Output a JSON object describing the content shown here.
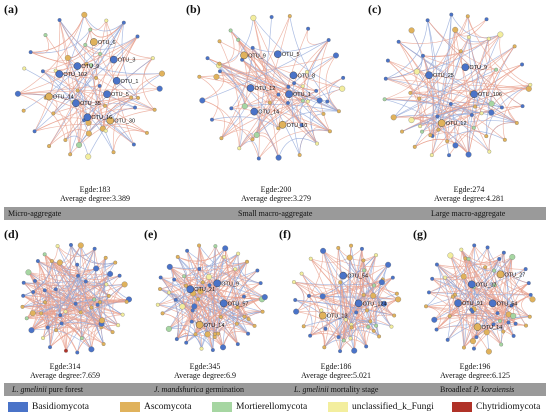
{
  "colors": {
    "basidio": "#4a73c8",
    "asco": "#e0b25c",
    "mort": "#a6d6a2",
    "uncl": "#f3ee9e",
    "chytrid": "#b03228",
    "edge_pos": "#e8a08e",
    "edge_neg": "#8fa6d8",
    "bar": "#9a9a9a"
  },
  "panels": [
    {
      "label": "(a)",
      "stats_line1": "Egde:183",
      "stats_line2": "Average degree:3.389",
      "nodes": [
        "OTU_5",
        "OTU_30",
        "OTU_16",
        "OTU_35",
        "OTU_14",
        "OTU_102",
        "OTU_9",
        "OTU_6",
        "OTU_3",
        "OTU_1"
      ]
    },
    {
      "label": "(b)",
      "stats_line1": "Egde:200",
      "stats_line2": "Average degree:3.279",
      "nodes": [
        "OTU_1",
        "OTU_10",
        "OTU_14",
        "OTU_12",
        "OTU_9",
        "OTU_5",
        "OTU_8"
      ]
    },
    {
      "label": "(c)",
      "stats_line1": "Egde:274",
      "stats_line2": "Average degree:4.281",
      "nodes": [
        "OTU_106",
        "OTU_12",
        "OTU_25",
        "OTU_9"
      ]
    },
    {
      "label": "(d)",
      "stats_line1": "Egde:314",
      "stats_line2": "Average degree:7.659",
      "nodes": []
    },
    {
      "label": "(e)",
      "stats_line1": "Egde:345",
      "stats_line2": "Average degree:6.9",
      "nodes": [
        "OTU_57",
        "OTU_14",
        "OTU_21",
        "OTU_9"
      ]
    },
    {
      "label": "(f)",
      "stats_line1": "Egde:186",
      "stats_line2": "Average degree:5.021",
      "nodes": [
        "OTU_124",
        "OTU_13",
        "OTU_54"
      ]
    },
    {
      "label": "(g)",
      "stats_line1": "Egde:196",
      "stats_line2": "Average degree:6.125",
      "nodes": [
        "OTU_54",
        "OTU_14",
        "OTU_91",
        "OTU_37",
        "OTU_27"
      ]
    }
  ],
  "bars": {
    "top": [
      "Micro-aggregate",
      "Small macro-aggregate",
      "Large macro-aggregate"
    ],
    "bottom": [
      {
        "italic": "L. gmelinii",
        "rest": " pure forest"
      },
      {
        "italic": "J. mandshurica",
        "rest": "  germination"
      },
      {
        "italic": "L. gmelinii",
        "rest": " mortality stage"
      },
      {
        "plain": "Broadleaf ",
        "italic": "P. koraiensis"
      }
    ]
  },
  "legend": [
    {
      "label": "Basidiomycota",
      "color_key": "basidio"
    },
    {
      "label": "Ascomycota",
      "color_key": "asco"
    },
    {
      "label": "Mortierellomycota",
      "color_key": "mort"
    },
    {
      "label": "unclassified_k_Fungi",
      "color_key": "uncl"
    },
    {
      "label": "Chytridiomycota",
      "color_key": "chytrid"
    }
  ]
}
